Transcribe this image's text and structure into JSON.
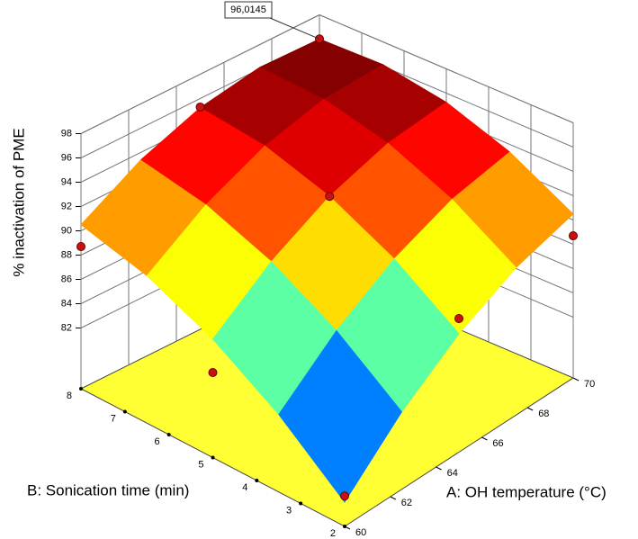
{
  "chart_data": {
    "type": "surface",
    "x_label": "A: OH temperature (°C)",
    "y_label": "B: Sonication time (min)",
    "z_label": "% inactivation of PME",
    "annotation": "96,0145",
    "x": [
      60,
      62.5,
      65,
      67.5,
      70
    ],
    "y": [
      2,
      3.5,
      5,
      6.5,
      8
    ],
    "z": [
      [
        79.0,
        83.38,
        86.75,
        89.13,
        90.5
      ],
      [
        83.38,
        87.38,
        90.38,
        92.38,
        93.38
      ],
      [
        86.75,
        90.38,
        93.0,
        94.63,
        95.25
      ],
      [
        89.13,
        92.38,
        94.63,
        95.88,
        96.13
      ],
      [
        90.5,
        93.38,
        95.25,
        96.13,
        96.0145
      ]
    ],
    "xlim": [
      60,
      70
    ],
    "xticks": [
      60,
      62,
      64,
      66,
      68,
      70
    ],
    "ylim": [
      2,
      8
    ],
    "yticks": [
      2,
      3,
      4,
      5,
      6,
      7,
      8
    ],
    "zlim": [
      77,
      98
    ],
    "zticks": [
      82,
      84,
      86,
      88,
      90,
      92,
      94,
      96,
      98
    ],
    "points": {
      "x": [
        60,
        60,
        60,
        65,
        65,
        65,
        70,
        70
      ],
      "y": [
        2,
        5,
        8,
        2,
        5,
        8,
        2,
        8
      ],
      "z": [
        79.5,
        84,
        88.7,
        88,
        93,
        95.3,
        88.7,
        96.0145
      ],
      "color": "#cc1010"
    },
    "floor_color": "#ffff33"
  }
}
